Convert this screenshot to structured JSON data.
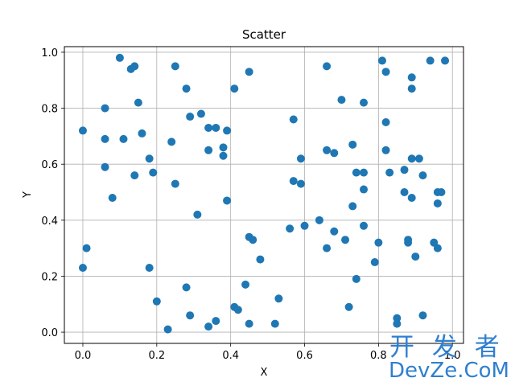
{
  "watermark": {
    "line1": "开 发 者",
    "line2": "DevZe.CoM"
  },
  "chart_data": {
    "type": "scatter",
    "title": "Scatter",
    "xlabel": "X",
    "ylabel": "Y",
    "xlim": [
      -0.05,
      1.03
    ],
    "ylim": [
      -0.04,
      1.02
    ],
    "xticks": [
      "0.0",
      "0.2",
      "0.4",
      "0.6",
      "0.8",
      "1.0"
    ],
    "yticks": [
      "0.0",
      "0.2",
      "0.4",
      "0.6",
      "0.8",
      "1.0"
    ],
    "grid": true,
    "color": "#1f77b4",
    "points": [
      [
        0.0,
        0.72
      ],
      [
        0.0,
        0.23
      ],
      [
        0.01,
        0.3
      ],
      [
        0.06,
        0.8
      ],
      [
        0.06,
        0.69
      ],
      [
        0.06,
        0.59
      ],
      [
        0.08,
        0.48
      ],
      [
        0.1,
        0.98
      ],
      [
        0.11,
        0.69
      ],
      [
        0.13,
        0.94
      ],
      [
        0.14,
        0.95
      ],
      [
        0.14,
        0.56
      ],
      [
        0.15,
        0.82
      ],
      [
        0.16,
        0.71
      ],
      [
        0.18,
        0.62
      ],
      [
        0.18,
        0.23
      ],
      [
        0.19,
        0.57
      ],
      [
        0.2,
        0.11
      ],
      [
        0.23,
        0.01
      ],
      [
        0.24,
        0.68
      ],
      [
        0.25,
        0.95
      ],
      [
        0.25,
        0.53
      ],
      [
        0.28,
        0.87
      ],
      [
        0.29,
        0.77
      ],
      [
        0.28,
        0.16
      ],
      [
        0.29,
        0.06
      ],
      [
        0.31,
        0.42
      ],
      [
        0.32,
        0.78
      ],
      [
        0.34,
        0.73
      ],
      [
        0.34,
        0.65
      ],
      [
        0.34,
        0.02
      ],
      [
        0.36,
        0.04
      ],
      [
        0.36,
        0.73
      ],
      [
        0.38,
        0.63
      ],
      [
        0.38,
        0.66
      ],
      [
        0.39,
        0.47
      ],
      [
        0.39,
        0.72
      ],
      [
        0.41,
        0.87
      ],
      [
        0.41,
        0.09
      ],
      [
        0.42,
        0.08
      ],
      [
        0.44,
        0.17
      ],
      [
        0.45,
        0.93
      ],
      [
        0.45,
        0.03
      ],
      [
        0.45,
        0.34
      ],
      [
        0.46,
        0.33
      ],
      [
        0.48,
        0.26
      ],
      [
        0.52,
        0.03
      ],
      [
        0.53,
        0.12
      ],
      [
        0.56,
        0.37
      ],
      [
        0.57,
        0.76
      ],
      [
        0.57,
        0.54
      ],
      [
        0.59,
        0.53
      ],
      [
        0.59,
        0.62
      ],
      [
        0.6,
        0.38
      ],
      [
        0.64,
        0.4
      ],
      [
        0.66,
        0.95
      ],
      [
        0.66,
        0.65
      ],
      [
        0.66,
        0.3
      ],
      [
        0.68,
        0.64
      ],
      [
        0.68,
        0.36
      ],
      [
        0.7,
        0.83
      ],
      [
        0.71,
        0.33
      ],
      [
        0.72,
        0.09
      ],
      [
        0.73,
        0.67
      ],
      [
        0.73,
        0.45
      ],
      [
        0.74,
        0.57
      ],
      [
        0.74,
        0.19
      ],
      [
        0.76,
        0.82
      ],
      [
        0.76,
        0.57
      ],
      [
        0.76,
        0.51
      ],
      [
        0.76,
        0.38
      ],
      [
        0.79,
        0.25
      ],
      [
        0.8,
        0.32
      ],
      [
        0.81,
        0.97
      ],
      [
        0.82,
        0.75
      ],
      [
        0.82,
        0.65
      ],
      [
        0.82,
        0.93
      ],
      [
        0.83,
        0.57
      ],
      [
        0.85,
        0.05
      ],
      [
        0.85,
        0.03
      ],
      [
        0.87,
        0.58
      ],
      [
        0.87,
        0.5
      ],
      [
        0.88,
        0.33
      ],
      [
        0.88,
        0.32
      ],
      [
        0.89,
        0.48
      ],
      [
        0.89,
        0.87
      ],
      [
        0.89,
        0.62
      ],
      [
        0.89,
        0.91
      ],
      [
        0.9,
        0.27
      ],
      [
        0.91,
        0.62
      ],
      [
        0.92,
        0.56
      ],
      [
        0.92,
        0.06
      ],
      [
        0.94,
        0.97
      ],
      [
        0.95,
        0.32
      ],
      [
        0.96,
        0.46
      ],
      [
        0.96,
        0.5
      ],
      [
        0.96,
        0.3
      ],
      [
        0.97,
        0.5
      ],
      [
        0.98,
        0.97
      ]
    ]
  }
}
